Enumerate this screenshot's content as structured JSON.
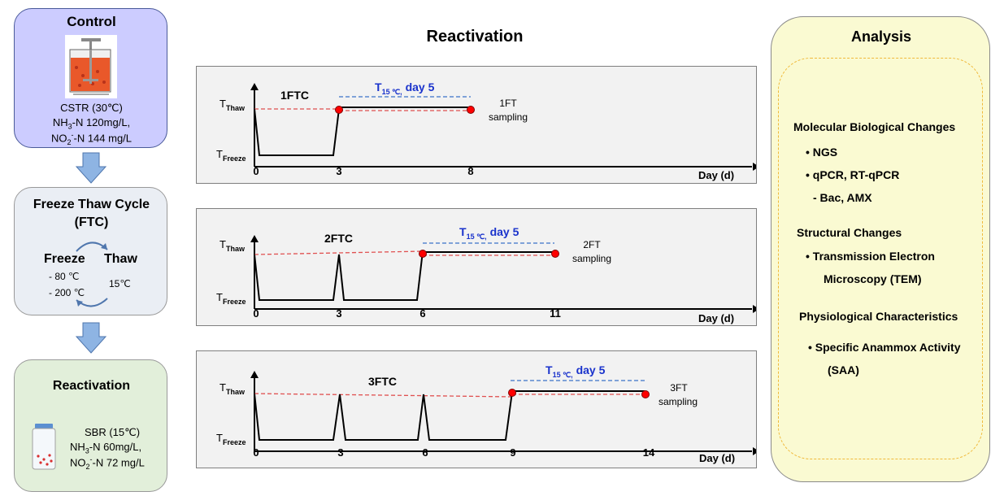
{
  "control": {
    "title": "Control",
    "line1": "CSTR (30℃)",
    "line2_pre": "NH",
    "line2_sub": "3",
    "line2_post": "-N 120mg/L,",
    "line3_pre": "NO",
    "line3_sub": "2",
    "line3_sup": "-",
    "line3_post": "-N 144 mg/L"
  },
  "ftc": {
    "title_line1": "Freeze Thaw Cycle",
    "title_line2": "(FTC)",
    "freeze_label": "Freeze",
    "thaw_label": "Thaw",
    "freeze_temp1": "- 80 ℃",
    "freeze_temp2": "- 200 ℃",
    "thaw_temp": "15℃"
  },
  "reactivation_box": {
    "title": "Reactivation",
    "line1": "SBR (15℃)",
    "line2_pre": "NH",
    "line2_sub": "3",
    "line2_post": "-N 60mg/L,",
    "line3_pre": "NO",
    "line3_sub": "2",
    "line3_sup": "-",
    "line3_post": "-N 72 mg/L"
  },
  "center_title": "Reactivation",
  "panels": [
    {
      "label": "1FTC",
      "t15_main": "T",
      "t15_sub": "15 ℃,",
      "t15_post": " day 5",
      "sampling_line1": "1FT",
      "sampling_line2": "sampling",
      "ticks": [
        "0",
        "3",
        "8"
      ],
      "thaw_main": "T",
      "thaw_sub": "Thaw",
      "freeze_main": "T",
      "freeze_sub": "Freeze",
      "xlabel": "Day (d)"
    },
    {
      "label": "2FTC",
      "t15_main": "T",
      "t15_sub": "15 ℃,",
      "t15_post": " day 5",
      "sampling_line1": "2FT",
      "sampling_line2": "sampling",
      "ticks": [
        "0",
        "3",
        "6",
        "11"
      ],
      "thaw_main": "T",
      "thaw_sub": "Thaw",
      "freeze_main": "T",
      "freeze_sub": "Freeze",
      "xlabel": "Day (d)"
    },
    {
      "label": "3FTC",
      "t15_main": "T",
      "t15_sub": "15 ℃,",
      "t15_post": " day 5",
      "sampling_line1": "3FT",
      "sampling_line2": "sampling",
      "ticks": [
        "0",
        "3",
        "6",
        "9",
        "14"
      ],
      "thaw_main": "T",
      "thaw_sub": "Thaw",
      "freeze_main": "T",
      "freeze_sub": "Freeze",
      "xlabel": "Day (d)"
    }
  ],
  "analysis": {
    "title": "Analysis",
    "mol_title": "Molecular Biological Changes",
    "mol_item1": "• NGS",
    "mol_item2": "• qPCR, RT-qPCR",
    "mol_item3": "- Bac, AMX",
    "struct_title": "Structural Changes",
    "struct_item1": "• Transmission Electron",
    "struct_item2": "Microscopy (TEM)",
    "phys_title": "Physiological Characteristics",
    "phys_item1": "• Specific Anammox Activity",
    "phys_item2": "(SAA)"
  },
  "colors": {
    "control_fill": "#ccccff",
    "ftc_fill": "#eaeef4",
    "reactivation_fill": "#e2efda",
    "analysis_fill": "#fafad2",
    "arrow_fill": "#8eb4e3",
    "blue_text": "#1a33cc",
    "red_marker": "#ff0000"
  }
}
